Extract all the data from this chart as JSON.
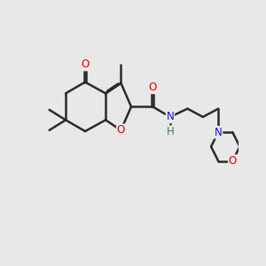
{
  "bg": "#e8e8e8",
  "bond_color": "#2a2a2a",
  "lw": 1.8,
  "sep": 0.045,
  "atom_colors": {
    "O": "#dd0000",
    "N": "#1414cc",
    "H": "#4a7070"
  },
  "fs": 8.5,
  "figsize": [
    3.0,
    3.0
  ],
  "dpi": 100,
  "xlim": [
    -0.5,
    9.5
  ],
  "ylim": [
    -0.5,
    9.5
  ]
}
